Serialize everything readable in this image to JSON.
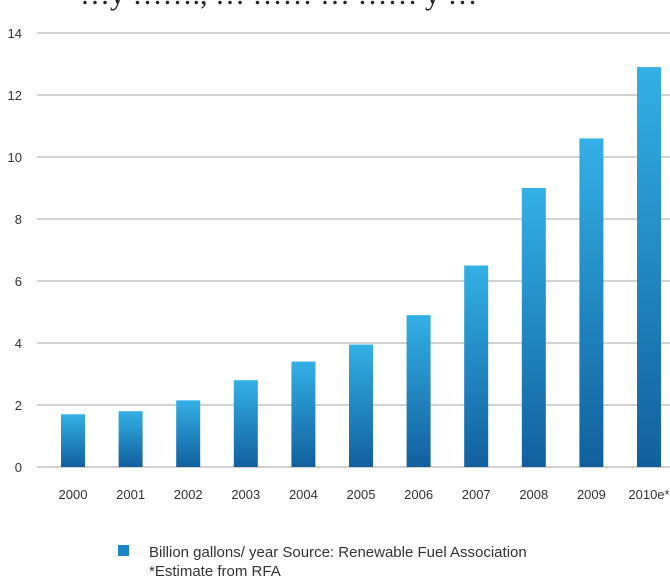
{
  "top_text_fragment": "…y ……., … …… … …… y …",
  "colors": {
    "bar_top": "#33b0e6",
    "bar_bottom": "#11609e",
    "legend_swatch": "#1a86c8",
    "grid": "#b8b8b8"
  },
  "chart_data": {
    "type": "bar",
    "categories": [
      "2000",
      "2001",
      "2002",
      "2003",
      "2004",
      "2005",
      "2006",
      "2007",
      "2008",
      "2009",
      "2010e*"
    ],
    "values": [
      1.7,
      1.8,
      2.15,
      2.8,
      3.4,
      3.95,
      4.9,
      6.5,
      9.0,
      10.6,
      12.9
    ],
    "yticks": [
      "0",
      "2",
      "4",
      "6",
      "8",
      "10",
      "12",
      "14"
    ],
    "ylim": [
      0,
      14
    ],
    "grid": true,
    "legend_position": "bottom",
    "legend_label": "Billion gallons/ year Source: Renewable Fuel Association",
    "footnote": "*Estimate from RFA"
  }
}
